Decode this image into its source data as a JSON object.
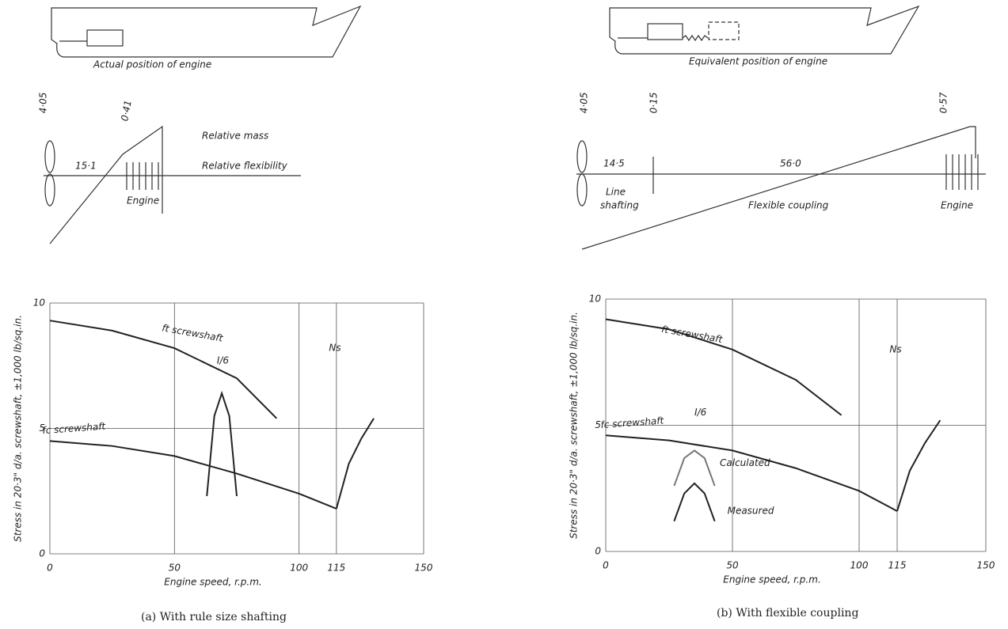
{
  "sketches": {
    "a": "Actual position of engine",
    "b": "Equivalent position of engine"
  },
  "diagrams": {
    "a": {
      "mass": "4·05",
      "engine_mass": "0·41",
      "flex": "15·1",
      "mass_label": "Relative mass",
      "flex_label": "Relative flexibility",
      "engine": "Engine"
    },
    "b": {
      "mass": "4·05",
      "coupling_mass": "0·15",
      "engine_mass": "0·57",
      "flex1": "14·5",
      "flex2": "56·0",
      "line1": "Line",
      "line2": "shafting",
      "coupling": "Flexible coupling",
      "engine": "Engine"
    }
  },
  "chart_data": [
    {
      "type": "line",
      "ylabel": "Stress in 20·3\" d/a. screwshaft, ±1,000 lb/sq.in.",
      "xlabel": "Engine speed, r.p.m.",
      "xlim": [
        0,
        150
      ],
      "ylim": [
        0,
        10
      ],
      "xticks": [
        0,
        50,
        100,
        115,
        150
      ],
      "yticks": [
        0,
        5,
        10
      ],
      "grid": true,
      "series": [
        {
          "name": "ft screwshaft",
          "color": "#222",
          "x": [
            0,
            25,
            50,
            75,
            91
          ],
          "values": [
            9.3,
            8.9,
            8.2,
            7.0,
            5.4
          ]
        },
        {
          "name": "fc screwshaft",
          "color": "#222",
          "x": [
            0,
            25,
            50,
            75,
            100,
            115
          ],
          "values": [
            4.5,
            4.3,
            3.9,
            3.2,
            2.4,
            1.8
          ]
        },
        {
          "color": "#222",
          "x": [
            115,
            120,
            125,
            130
          ],
          "values": [
            1.8,
            3.6,
            4.6,
            5.4
          ]
        },
        {
          "color": "#222",
          "x": [
            63,
            66,
            69,
            72,
            75
          ],
          "values": [
            2.3,
            5.5,
            6.4,
            5.5,
            2.3
          ]
        }
      ],
      "annotations": [
        "I/6",
        "Ns"
      ]
    },
    {
      "type": "line",
      "ylabel": "Stress in 20·3\" d/a. screwshaft, ±1,000 lb/sq.in.",
      "xlabel": "Engine speed, r.p.m.",
      "xlim": [
        0,
        150
      ],
      "ylim": [
        0,
        10
      ],
      "xticks": [
        0,
        50,
        100,
        115,
        150
      ],
      "yticks": [
        0,
        5,
        10
      ],
      "grid": true,
      "series": [
        {
          "name": "ft screwshaft",
          "color": "#222",
          "x": [
            0,
            25,
            50,
            75,
            93
          ],
          "values": [
            9.2,
            8.8,
            8.0,
            6.8,
            5.4
          ]
        },
        {
          "name": "fc screwshaft",
          "color": "#222",
          "x": [
            0,
            25,
            50,
            75,
            100,
            115
          ],
          "values": [
            4.6,
            4.4,
            4.0,
            3.3,
            2.4,
            1.6
          ]
        },
        {
          "color": "#222",
          "x": [
            115,
            120,
            126,
            132
          ],
          "values": [
            1.6,
            3.2,
            4.3,
            5.2
          ]
        },
        {
          "color": "#777",
          "x": [
            27,
            31,
            35,
            39,
            43
          ],
          "values": [
            2.6,
            3.7,
            4.0,
            3.7,
            2.6
          ]
        },
        {
          "color": "#222",
          "x": [
            27,
            31,
            35,
            39,
            43
          ],
          "values": [
            1.2,
            2.3,
            2.7,
            2.3,
            1.2
          ]
        }
      ],
      "annotations": [
        "I/6",
        "Ns",
        "Calculated",
        "Measured"
      ]
    }
  ],
  "captions": [
    "(a) With rule size shafting",
    "(b) With flexible coupling"
  ]
}
